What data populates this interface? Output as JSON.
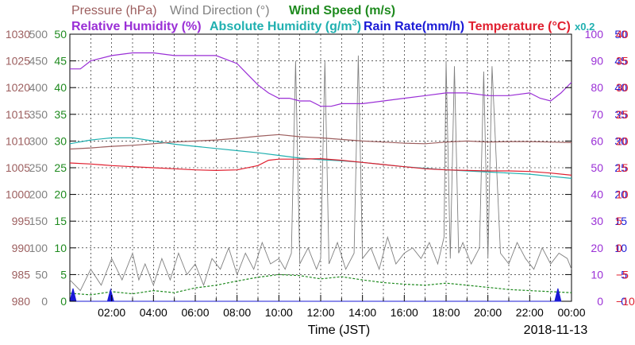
{
  "chart_data": {
    "type": "line",
    "xlabel": "Time (JST)",
    "date": "2018-11-13",
    "x_ticks": [
      "02:00",
      "04:00",
      "06:00",
      "08:00",
      "10:00",
      "12:00",
      "14:00",
      "16:00",
      "18:00",
      "20:00",
      "22:00",
      "00:00"
    ],
    "x_range_hours": [
      0,
      24
    ],
    "legend_row1": [
      {
        "label": "Pressure (hPa)",
        "color": "#9c5e5e"
      },
      {
        "label": "Wind Direction (°)",
        "color": "#808080"
      },
      {
        "label": "Wind Speed (m/s)",
        "color": "#1e8a1e"
      }
    ],
    "legend_row2": [
      {
        "label": "Relative Humidity (%)",
        "color": "#9a2fd6"
      },
      {
        "label": "Absolute Humidity (g/m",
        "color": "#20b0b0",
        "sup": "3",
        "suffix": ")",
        "suffix_note": "x0.2"
      },
      {
        "label": "Rain Rate(mm/h)",
        "color": "#1a1ad6"
      },
      {
        "label": "Temperature (°C)",
        "color": "#e01e2e"
      }
    ],
    "axes": {
      "pressure": {
        "color": "#9c5e5e",
        "min": 980,
        "max": 1030,
        "ticks": [
          "980",
          "985",
          "990",
          "995",
          "1000",
          "1005",
          "1010",
          "1015",
          "1020",
          "1025",
          "1030"
        ]
      },
      "wind_dir": {
        "color": "#808080",
        "min": 0,
        "max": 500,
        "ticks": [
          "0",
          "50",
          "100",
          "150",
          "200",
          "250",
          "300",
          "350",
          "400",
          "450",
          "500"
        ]
      },
      "wind_speed": {
        "color": "#1e8a1e",
        "min": 0,
        "max": 50,
        "ticks": [
          "0",
          "5",
          "10",
          "15",
          "20",
          "25",
          "30",
          "35",
          "40",
          "45",
          "50"
        ]
      },
      "humidity": {
        "color": "#9a2fd6",
        "min": 0,
        "max": 100,
        "ticks": [
          "0",
          "10",
          "20",
          "30",
          "40",
          "50",
          "60",
          "70",
          "80",
          "90",
          "100"
        ]
      },
      "rain": {
        "color": "#1a1ad6",
        "min": 0,
        "max": 50,
        "ticks": [
          "0",
          "5",
          "10",
          "15",
          "20",
          "25",
          "30",
          "35",
          "40",
          "45",
          "50"
        ]
      },
      "temperature": {
        "color": "#e01e2e",
        "min": -10,
        "max": 40,
        "ticks": [
          "−10",
          "−5",
          "0",
          "5",
          "10",
          "15",
          "20",
          "25",
          "30",
          "35",
          "40"
        ]
      }
    },
    "series": [
      {
        "name": "Pressure (hPa)",
        "axis": "pressure",
        "color": "#9c5e5e",
        "x": [
          0,
          1,
          2,
          3,
          4,
          5,
          6,
          7,
          8,
          9,
          10,
          11,
          12,
          13,
          14,
          15,
          16,
          17,
          18,
          19,
          20,
          21,
          22,
          23,
          24
        ],
        "y": [
          1008.5,
          1008.7,
          1009.0,
          1009.2,
          1009.5,
          1009.8,
          1010.0,
          1010.2,
          1010.5,
          1010.9,
          1011.2,
          1010.8,
          1010.6,
          1010.3,
          1010.0,
          1009.8,
          1009.6,
          1009.5,
          1009.8,
          1010.0,
          1009.8,
          1009.9,
          1009.9,
          1009.8,
          1009.7
        ]
      },
      {
        "name": "Relative Humidity (%)",
        "axis": "humidity",
        "color": "#9a2fd6",
        "x": [
          0,
          0.5,
          1,
          2,
          3,
          4,
          5,
          6,
          7,
          8,
          8.5,
          9,
          9.5,
          10,
          10.5,
          11,
          11.5,
          12,
          12.5,
          13,
          14,
          15,
          16,
          17,
          18,
          19,
          20,
          21,
          22,
          22.5,
          23,
          23.5,
          24
        ],
        "y": [
          87,
          87,
          90,
          92,
          93,
          93,
          92,
          92,
          92,
          89,
          85,
          81,
          78,
          76,
          76,
          75,
          75,
          73,
          73,
          74,
          74,
          75,
          76,
          77,
          78,
          78,
          77,
          77,
          78,
          76,
          75,
          78,
          82
        ]
      },
      {
        "name": "Absolute Humidity",
        "axis": "wind_speed",
        "color": "#20b0b0",
        "x": [
          0,
          1,
          2,
          3,
          4,
          5,
          6,
          7,
          8,
          9,
          10,
          11,
          12,
          13,
          14,
          15,
          16,
          17,
          18,
          19,
          20,
          21,
          22,
          23,
          24
        ],
        "y": [
          29.5,
          30.2,
          30.6,
          30.6,
          30.0,
          29.4,
          29.0,
          28.6,
          28.2,
          27.8,
          27.3,
          26.8,
          26.5,
          26.3,
          26.0,
          25.6,
          25.2,
          24.9,
          24.6,
          24.4,
          24.2,
          24.0,
          23.8,
          23.4,
          23.0
        ]
      },
      {
        "name": "Temperature (°C)",
        "axis": "temperature",
        "color": "#e01e2e",
        "x": [
          0,
          1,
          2,
          3,
          4,
          5,
          6,
          7,
          8,
          9,
          9.5,
          10,
          11,
          12,
          13,
          14,
          15,
          16,
          17,
          18,
          19,
          20,
          21,
          22,
          23,
          24
        ],
        "y": [
          15.9,
          15.7,
          15.4,
          15.2,
          15.0,
          14.8,
          14.6,
          14.5,
          14.6,
          15.4,
          16.4,
          16.6,
          16.6,
          16.7,
          16.4,
          16.0,
          15.6,
          15.2,
          14.8,
          14.6,
          14.5,
          14.4,
          14.4,
          14.3,
          14.0,
          13.6
        ]
      },
      {
        "name": "Wind Direction (°)",
        "axis": "wind_dir",
        "color": "#808080",
        "x": [
          0,
          0.5,
          1,
          1.5,
          2,
          2.5,
          3,
          3.3,
          3.6,
          4,
          4.4,
          4.8,
          5.2,
          5.6,
          6,
          6.4,
          6.8,
          7.2,
          7.6,
          8,
          8.4,
          8.8,
          9.2,
          9.6,
          10,
          10.3,
          10.6,
          10.8,
          11,
          11.4,
          11.8,
          12,
          12.2,
          12.4,
          12.8,
          13.2,
          13.6,
          13.8,
          14,
          14.4,
          14.8,
          15.2,
          15.6,
          16,
          16.4,
          16.8,
          17.2,
          17.6,
          17.9,
          18.0,
          18.2,
          18.4,
          18.6,
          18.8,
          19.2,
          19.6,
          19.8,
          20.0,
          20.2,
          20.6,
          21,
          21.4,
          21.8,
          22.2,
          22.6,
          23,
          23.4,
          23.8,
          24
        ],
        "y": [
          40,
          20,
          60,
          30,
          80,
          40,
          90,
          40,
          70,
          30,
          80,
          40,
          90,
          50,
          70,
          30,
          80,
          60,
          100,
          50,
          90,
          60,
          110,
          70,
          80,
          60,
          90,
          450,
          70,
          100,
          60,
          80,
          450,
          70,
          110,
          60,
          90,
          460,
          80,
          100,
          60,
          120,
          70,
          90,
          100,
          80,
          110,
          70,
          120,
          450,
          80,
          440,
          90,
          110,
          70,
          100,
          430,
          80,
          440,
          90,
          70,
          110,
          80,
          60,
          100,
          70,
          90,
          80,
          60
        ]
      },
      {
        "name": "Wind Speed (m/s)",
        "axis": "wind_speed",
        "color": "#1e8a1e",
        "x": [
          0,
          1,
          2,
          3,
          4,
          5,
          6,
          7,
          8,
          9,
          10,
          11,
          12,
          13,
          14,
          15,
          16,
          17,
          18,
          19,
          20,
          21,
          22,
          23,
          24
        ],
        "y": [
          1.5,
          1.2,
          1.8,
          1.4,
          2.0,
          1.6,
          2.5,
          3.0,
          3.8,
          4.5,
          5.0,
          4.8,
          4.2,
          4.6,
          4.0,
          3.5,
          3.2,
          3.0,
          3.4,
          3.0,
          2.6,
          2.2,
          2.0,
          1.8,
          1.6
        ]
      },
      {
        "name": "Rain Rate(mm/h)",
        "axis": "rain",
        "color": "#1a1ad6",
        "x": [
          0,
          0.15,
          0.3,
          0.45,
          1.8,
          1.95,
          2.1,
          23.2,
          23.35,
          23.5
        ],
        "y": [
          0,
          2.4,
          0,
          0,
          0,
          2.2,
          0,
          0,
          2.4,
          0
        ]
      }
    ]
  }
}
